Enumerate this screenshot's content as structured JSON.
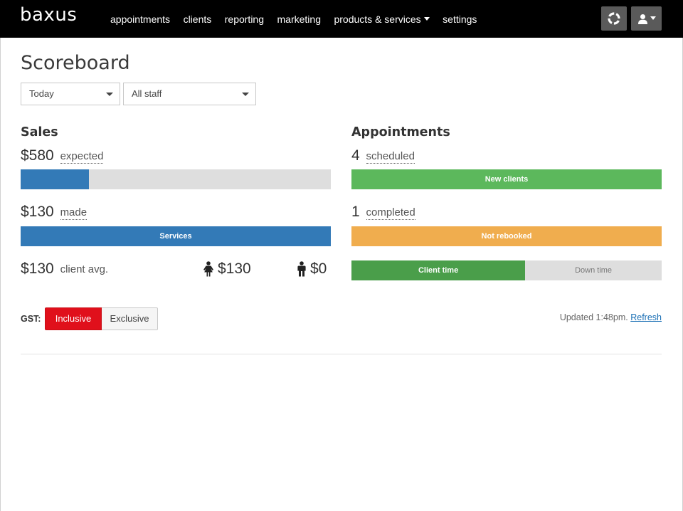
{
  "app": {
    "logo": "baxus"
  },
  "nav": {
    "items": [
      "appointments",
      "clients",
      "reporting",
      "marketing"
    ],
    "products_services": "products & services",
    "settings": "settings"
  },
  "page": {
    "title": "Scoreboard"
  },
  "filters": {
    "period": "Today",
    "staff": "All staff"
  },
  "sales": {
    "heading": "Sales",
    "expected_amount": "$580",
    "expected_label": "expected",
    "expected_progress": 0.22,
    "made_amount": "$130",
    "made_label": "made",
    "services_label": "Services",
    "avg_amount": "$130",
    "avg_label": "client avg.",
    "female_avg": "$130",
    "male_avg": "$0"
  },
  "appointments": {
    "heading": "Appointments",
    "scheduled_count": "4",
    "scheduled_label": "scheduled",
    "new_clients_label": "New clients",
    "completed_count": "1",
    "completed_label": "completed",
    "not_rebooked_label": "Not rebooked",
    "client_time_label": "Client time",
    "down_time_label": "Down time",
    "client_time_fraction": 0.56
  },
  "gst": {
    "label": "GST:",
    "inclusive": "Inclusive",
    "exclusive": "Exclusive",
    "selected": "Inclusive"
  },
  "status": {
    "updated": "Updated 1:48pm.",
    "refresh": "Refresh"
  },
  "colors": {
    "blue": "#337ab7",
    "green": "#5cb85c",
    "dark_green": "#4a9e4a",
    "orange": "#f0ad4e",
    "grey": "#dedede",
    "red": "#e0101b"
  }
}
